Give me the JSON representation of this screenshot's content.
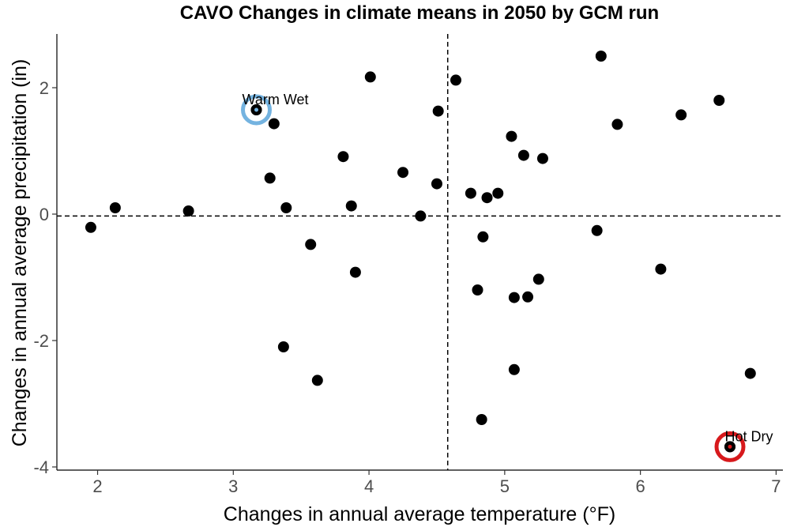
{
  "chart_data": {
    "type": "scatter",
    "title": "CAVO Changes in climate means in 2050 by GCM run",
    "xlabel": "Changes in annual average temperature (°F)",
    "ylabel": "Changes in annual average precipitation (in)",
    "xlim": [
      1.7,
      7.05
    ],
    "ylim": [
      -4.05,
      2.85
    ],
    "xticks": [
      2,
      3,
      4,
      5,
      6,
      7
    ],
    "yticks": [
      -4,
      -2,
      0,
      2
    ],
    "xtick_labels": [
      "2",
      "3",
      "4",
      "5",
      "6",
      "7"
    ],
    "ytick_labels": [
      "-4",
      "-2",
      "0",
      "2"
    ],
    "grid": false,
    "reference_lines": {
      "x": 4.58,
      "y": -0.03
    },
    "points": [
      {
        "x": 1.95,
        "y": -0.21
      },
      {
        "x": 2.13,
        "y": 0.1
      },
      {
        "x": 2.67,
        "y": 0.05
      },
      {
        "x": 3.17,
        "y": 1.65
      },
      {
        "x": 3.27,
        "y": 0.57
      },
      {
        "x": 3.3,
        "y": 1.43
      },
      {
        "x": 3.37,
        "y": -2.1
      },
      {
        "x": 3.39,
        "y": 0.1
      },
      {
        "x": 3.57,
        "y": -0.48
      },
      {
        "x": 3.62,
        "y": -2.63
      },
      {
        "x": 3.81,
        "y": 0.91
      },
      {
        "x": 3.87,
        "y": 0.13
      },
      {
        "x": 3.9,
        "y": -0.92
      },
      {
        "x": 4.01,
        "y": 2.17
      },
      {
        "x": 4.25,
        "y": 0.66
      },
      {
        "x": 4.38,
        "y": -0.03
      },
      {
        "x": 4.5,
        "y": 0.48
      },
      {
        "x": 4.51,
        "y": 1.63
      },
      {
        "x": 4.64,
        "y": 2.12
      },
      {
        "x": 4.75,
        "y": 0.33
      },
      {
        "x": 4.8,
        "y": -1.2
      },
      {
        "x": 4.83,
        "y": -3.25
      },
      {
        "x": 4.84,
        "y": -0.36
      },
      {
        "x": 4.87,
        "y": 0.26
      },
      {
        "x": 4.95,
        "y": 0.33
      },
      {
        "x": 5.05,
        "y": 1.23
      },
      {
        "x": 5.07,
        "y": -1.32
      },
      {
        "x": 5.07,
        "y": -2.46
      },
      {
        "x": 5.14,
        "y": 0.93
      },
      {
        "x": 5.17,
        "y": -1.31
      },
      {
        "x": 5.25,
        "y": -1.03
      },
      {
        "x": 5.28,
        "y": 0.88
      },
      {
        "x": 5.68,
        "y": -0.26
      },
      {
        "x": 5.71,
        "y": 2.5
      },
      {
        "x": 5.83,
        "y": 1.42
      },
      {
        "x": 6.15,
        "y": -0.87
      },
      {
        "x": 6.3,
        "y": 1.57
      },
      {
        "x": 6.58,
        "y": 1.8
      },
      {
        "x": 6.66,
        "y": -3.68
      },
      {
        "x": 6.81,
        "y": -2.52
      }
    ],
    "highlights": [
      {
        "label": "Warm Wet",
        "x": 3.17,
        "y": 1.65,
        "color": "#74b3e0"
      },
      {
        "label": "Hot Dry",
        "x": 6.66,
        "y": -3.68,
        "color": "#d7191c"
      }
    ]
  }
}
